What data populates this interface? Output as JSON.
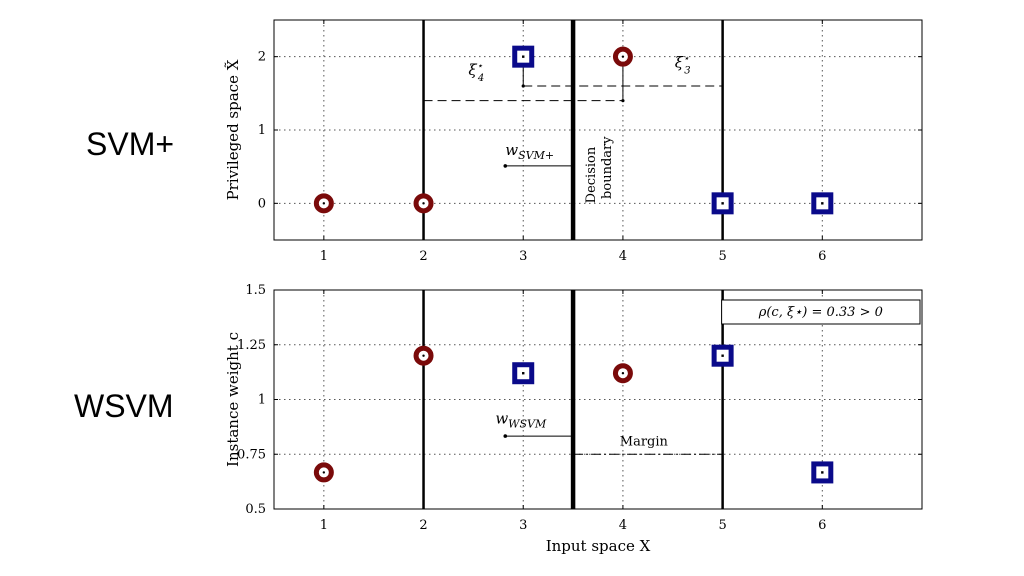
{
  "slide": {
    "top_label": "SVM+",
    "bottom_label": "WSVM"
  },
  "colors": {
    "class_circle": "#7a0a0a",
    "class_square": "#0a0a8a",
    "frame": "#000000",
    "grid": "#555555"
  },
  "chart_data": [
    {
      "type": "scatter",
      "ylabel": "Privileged space X̃",
      "xlabel": "",
      "xlim": [
        0.5,
        7.0
      ],
      "ylim": [
        -0.5,
        2.5
      ],
      "xticks": [
        1,
        2,
        3,
        4,
        5,
        6
      ],
      "yticks": [
        0,
        1,
        2
      ],
      "grid": true,
      "series": [
        {
          "marker": "circle",
          "x": [
            1,
            2,
            4
          ],
          "y": [
            0,
            0,
            2
          ]
        },
        {
          "marker": "square",
          "x": [
            3,
            5,
            6
          ],
          "y": [
            2,
            0,
            0
          ]
        }
      ],
      "vertical_lines": [
        {
          "x": 2,
          "style": "solid"
        },
        {
          "x": 3.5,
          "style": "bold"
        },
        {
          "x": 5,
          "style": "solid"
        }
      ],
      "annotations": {
        "xi4": "ξ",
        "xi4_sub": "4",
        "xi3": "ξ",
        "xi3_sub": "3",
        "star": "⋆",
        "w_label": "w",
        "w_sub": "SVM+",
        "boundary_line1": "Decision",
        "boundary_line2": "boundary"
      },
      "dashed_levels": [
        1.4,
        1.6
      ]
    },
    {
      "type": "scatter",
      "ylabel": "Instance weight c",
      "xlabel": "Input space X",
      "xlim": [
        0.5,
        7.0
      ],
      "ylim": [
        0.5,
        1.5
      ],
      "xticks": [
        1,
        2,
        3,
        4,
        5,
        6
      ],
      "yticks": [
        0.5,
        0.75,
        1,
        1.25,
        1.5
      ],
      "ytick_labels": [
        "0.5",
        "0.75",
        "1",
        "1.25",
        "1.5"
      ],
      "grid": true,
      "series": [
        {
          "marker": "circle",
          "x": [
            1,
            2,
            4
          ],
          "y": [
            0.667,
            1.2,
            1.12
          ]
        },
        {
          "marker": "square",
          "x": [
            3,
            5,
            6
          ],
          "y": [
            1.12,
            1.2,
            0.667
          ]
        }
      ],
      "vertical_lines": [
        {
          "x": 2,
          "style": "solid"
        },
        {
          "x": 3.5,
          "style": "bold"
        },
        {
          "x": 5,
          "style": "solid"
        }
      ],
      "annotations": {
        "w_label": "w",
        "w_sub": "WSVM",
        "margin": "Margin",
        "legend_box": "ρ(c, ξ⋆) = 0.33 > 0"
      },
      "margin_level": 0.75
    }
  ]
}
